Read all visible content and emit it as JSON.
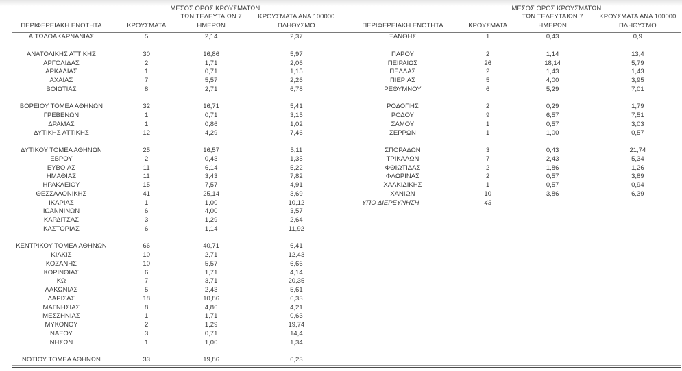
{
  "header": {
    "region": "ΠΕΡΙΦΕΡΕΙΑΚΗ ΕΝΟΤΗΤΑ",
    "cases": "ΚΡΟΥΣΜΑΤΑ",
    "avg7_line1": "ΜΕΣΟΣ ΟΡΟΣ ΚΡΟΥΣΜΑΤΩΝ",
    "avg7_line2": "ΤΩΝ ΤΕΛΕΥΤΑΙΩΝ 7",
    "avg7_line3": "ΗΜΕΡΩΝ",
    "per100k_line1": "ΚΡΟΥΣΜΑΤΑ ΑΝΑ 100000",
    "per100k_line2": "ΠΛΗΘΥΣΜΟ"
  },
  "colors": {
    "text": "#3b3b3b",
    "header_rule": "#7a7a7a",
    "bottom_rule_thin": "#9a9a9a",
    "bottom_rule_thick": "#4a4a4a"
  },
  "left_table": {
    "rows": [
      {
        "region": "ΑΙΤΩΛΟΑΚΑΡΝΑΝΙΑΣ",
        "cases": "5",
        "avg7": "2,14",
        "per100k": "2,37"
      },
      {
        "kind": "spacer",
        "region": "",
        "cases": "",
        "avg7": "",
        "per100k": ""
      },
      {
        "region": "ΑΝΑΤΟΛΙΚΗΣ ΑΤΤΙΚΗΣ",
        "cases": "30",
        "avg7": "16,86",
        "per100k": "5,97"
      },
      {
        "region": "ΑΡΓΟΛΙΔΑΣ",
        "cases": "2",
        "avg7": "1,71",
        "per100k": "2,06"
      },
      {
        "region": "ΑΡΚΑΔΙΑΣ",
        "cases": "1",
        "avg7": "0,71",
        "per100k": "1,15"
      },
      {
        "region": "ΑΧΑΪΑΣ",
        "cases": "7",
        "avg7": "5,57",
        "per100k": "2,26"
      },
      {
        "region": "ΒΟΙΩΤΙΑΣ",
        "cases": "8",
        "avg7": "2,71",
        "per100k": "6,78"
      },
      {
        "kind": "spacer",
        "region": "",
        "cases": "",
        "avg7": "",
        "per100k": ""
      },
      {
        "region": "ΒΟΡΕΙΟΥ ΤΟΜΕΑ ΑΘΗΝΩΝ",
        "cases": "32",
        "avg7": "16,71",
        "per100k": "5,41"
      },
      {
        "region": "ΓΡΕΒΕΝΩΝ",
        "cases": "1",
        "avg7": "0,71",
        "per100k": "3,15"
      },
      {
        "region": "ΔΡΑΜΑΣ",
        "cases": "1",
        "avg7": "0,86",
        "per100k": "1,02"
      },
      {
        "region": "ΔΥΤΙΚΗΣ ΑΤΤΙΚΗΣ",
        "cases": "12",
        "avg7": "4,29",
        "per100k": "7,46"
      },
      {
        "kind": "spacer",
        "region": "",
        "cases": "",
        "avg7": "",
        "per100k": ""
      },
      {
        "region": "ΔΥΤΙΚΟΥ ΤΟΜΕΑ ΑΘΗΝΩΝ",
        "cases": "25",
        "avg7": "16,57",
        "per100k": "5,11"
      },
      {
        "region": "ΕΒΡΟΥ",
        "cases": "2",
        "avg7": "0,43",
        "per100k": "1,35"
      },
      {
        "region": "ΕΥΒΟΙΑΣ",
        "cases": "11",
        "avg7": "6,14",
        "per100k": "5,22"
      },
      {
        "region": "ΗΜΑΘΙΑΣ",
        "cases": "11",
        "avg7": "3,43",
        "per100k": "7,82"
      },
      {
        "region": "ΗΡΑΚΛΕΙΟΥ",
        "cases": "15",
        "avg7": "7,57",
        "per100k": "4,91"
      },
      {
        "region": "ΘΕΣΣΑΛΟΝΙΚΗΣ",
        "cases": "41",
        "avg7": "25,14",
        "per100k": "3,69"
      },
      {
        "region": "ΙΚΑΡΙΑΣ",
        "cases": "1",
        "avg7": "1,00",
        "per100k": "10,12"
      },
      {
        "region": "ΙΩΑΝΝΙΝΩΝ",
        "cases": "6",
        "avg7": "4,00",
        "per100k": "3,57"
      },
      {
        "region": "ΚΑΡΔΙΤΣΑΣ",
        "cases": "3",
        "avg7": "1,29",
        "per100k": "2,64"
      },
      {
        "region": "ΚΑΣΤΟΡΙΑΣ",
        "cases": "6",
        "avg7": "1,14",
        "per100k": "11,92"
      },
      {
        "kind": "spacer",
        "region": "",
        "cases": "",
        "avg7": "",
        "per100k": ""
      },
      {
        "region": "ΚΕΝΤΡΙΚΟΥ ΤΟΜΕΑ ΑΘΗΝΩΝ",
        "cases": "66",
        "avg7": "40,71",
        "per100k": "6,41"
      },
      {
        "region": "ΚΙΛΚΙΣ",
        "cases": "10",
        "avg7": "2,71",
        "per100k": "12,43"
      },
      {
        "region": "ΚΟΖΑΝΗΣ",
        "cases": "10",
        "avg7": "5,57",
        "per100k": "6,66"
      },
      {
        "region": "ΚΟΡΙΝΘΙΑΣ",
        "cases": "6",
        "avg7": "1,71",
        "per100k": "4,14"
      },
      {
        "region": "ΚΩ",
        "cases": "7",
        "avg7": "3,71",
        "per100k": "20,35"
      },
      {
        "region": "ΛΑΚΩΝΙΑΣ",
        "cases": "5",
        "avg7": "2,43",
        "per100k": "5,61"
      },
      {
        "region": "ΛΑΡΙΣΑΣ",
        "cases": "18",
        "avg7": "10,86",
        "per100k": "6,33"
      },
      {
        "region": "ΜΑΓΝΗΣΙΑΣ",
        "cases": "8",
        "avg7": "4,86",
        "per100k": "4,21"
      },
      {
        "region": "ΜΕΣΣΗΝΙΑΣ",
        "cases": "1",
        "avg7": "1,71",
        "per100k": "0,63"
      },
      {
        "region": "ΜΥΚΟΝΟΥ",
        "cases": "2",
        "avg7": "1,29",
        "per100k": "19,74"
      },
      {
        "region": "ΝΑΞΟΥ",
        "cases": "3",
        "avg7": "0,71",
        "per100k": "14,4"
      },
      {
        "region": "ΝΗΣΩΝ",
        "cases": "1",
        "avg7": "1,00",
        "per100k": "1,34"
      },
      {
        "kind": "spacer",
        "region": "",
        "cases": "",
        "avg7": "",
        "per100k": ""
      },
      {
        "region": "ΝΟΤΙΟΥ ΤΟΜΕΑ ΑΘΗΝΩΝ",
        "cases": "33",
        "avg7": "19,86",
        "per100k": "6,23"
      }
    ]
  },
  "right_table": {
    "rows": [
      {
        "region": "ΞΑΝΘΗΣ",
        "cases": "1",
        "avg7": "0,43",
        "per100k": "0,9"
      },
      {
        "kind": "spacer",
        "region": "",
        "cases": "",
        "avg7": "",
        "per100k": ""
      },
      {
        "region": "ΠΑΡΟΥ",
        "cases": "2",
        "avg7": "1,14",
        "per100k": "13,4"
      },
      {
        "region": "ΠΕΙΡΑΙΩΣ",
        "cases": "26",
        "avg7": "18,14",
        "per100k": "5,79"
      },
      {
        "region": "ΠΕΛΛΑΣ",
        "cases": "2",
        "avg7": "1,43",
        "per100k": "1,43"
      },
      {
        "region": "ΠΙΕΡΙΑΣ",
        "cases": "5",
        "avg7": "4,00",
        "per100k": "3,95"
      },
      {
        "region": "ΡΕΘΥΜΝΟΥ",
        "cases": "6",
        "avg7": "5,29",
        "per100k": "7,01"
      },
      {
        "kind": "spacer",
        "region": "",
        "cases": "",
        "avg7": "",
        "per100k": ""
      },
      {
        "region": "ΡΟΔΟΠΗΣ",
        "cases": "2",
        "avg7": "0,29",
        "per100k": "1,79"
      },
      {
        "region": "ΡΟΔΟΥ",
        "cases": "9",
        "avg7": "6,57",
        "per100k": "7,51"
      },
      {
        "region": "ΣΑΜΟΥ",
        "cases": "1",
        "avg7": "0,57",
        "per100k": "3,03"
      },
      {
        "region": "ΣΕΡΡΩΝ",
        "cases": "1",
        "avg7": "1,00",
        "per100k": "0,57"
      },
      {
        "kind": "spacer",
        "region": "",
        "cases": "",
        "avg7": "",
        "per100k": ""
      },
      {
        "region": "ΣΠΟΡΑΔΩΝ",
        "cases": "3",
        "avg7": "0,43",
        "per100k": "21,74"
      },
      {
        "region": "ΤΡΙΚΑΛΩΝ",
        "cases": "7",
        "avg7": "2,43",
        "per100k": "5,34"
      },
      {
        "region": "ΦΘΙΩΤΙΔΑΣ",
        "cases": "2",
        "avg7": "1,86",
        "per100k": "1,26"
      },
      {
        "region": "ΦΛΩΡΙΝΑΣ",
        "cases": "2",
        "avg7": "0,57",
        "per100k": "3,89"
      },
      {
        "region": "ΧΑΛΚΙΔΙΚΗΣ",
        "cases": "1",
        "avg7": "0,57",
        "per100k": "0,94"
      },
      {
        "region": "ΧΑΝΙΩΝ",
        "cases": "10",
        "avg7": "3,86",
        "per100k": "6,39"
      },
      {
        "kind": "pending",
        "region": "ΥΠΟ ΔΙΕΡΕΥΝΗΣΗ",
        "cases": "43",
        "avg7": "",
        "per100k": ""
      }
    ]
  }
}
